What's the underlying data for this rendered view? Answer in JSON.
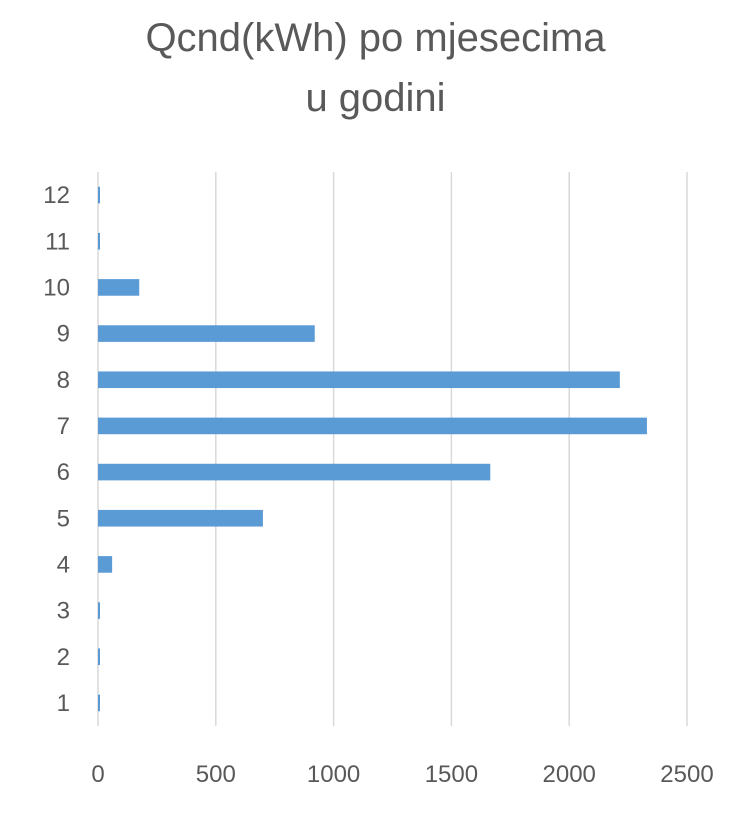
{
  "chart_data": {
    "type": "bar",
    "orientation": "horizontal",
    "title": "Qcnd(kWh) po mjesecima\nu godini",
    "categories": [
      "1",
      "2",
      "3",
      "4",
      "5",
      "6",
      "7",
      "8",
      "9",
      "10",
      "11",
      "12"
    ],
    "series": [
      {
        "values": [
          8,
          8,
          8,
          60,
          700,
          1665,
          2330,
          2215,
          920,
          175,
          8,
          8
        ],
        "color": "#5B9BD5"
      }
    ],
    "xlim": [
      0,
      2500
    ],
    "xticks": [
      "0",
      "500",
      "1000",
      "1500",
      "2000",
      "2500"
    ],
    "grid": "vertical",
    "gridColor": "#D9D9D9",
    "legend": "none"
  }
}
